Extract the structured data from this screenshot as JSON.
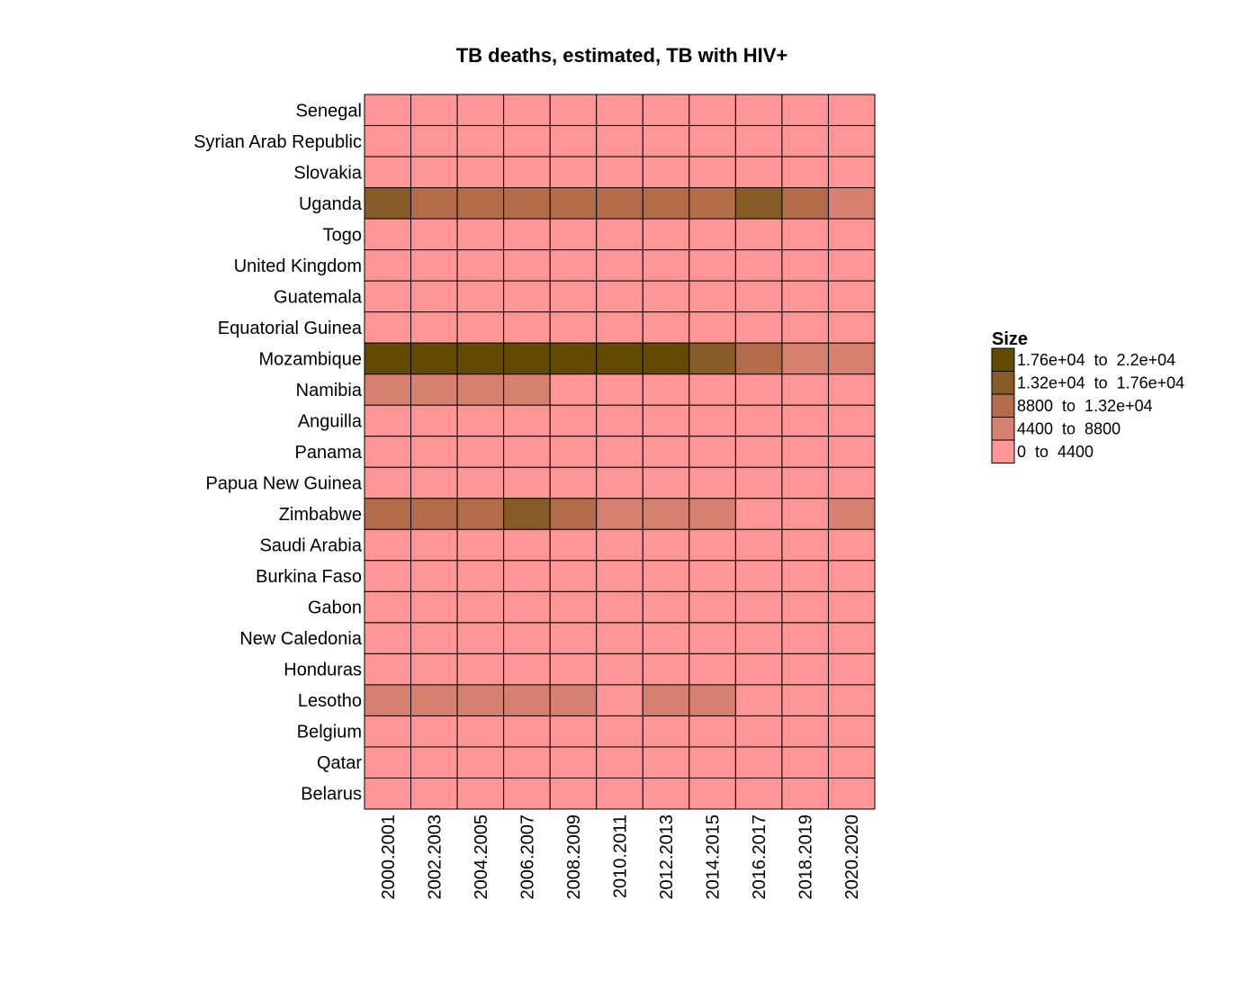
{
  "chart_data": {
    "type": "heatmap",
    "title": "TB deaths, estimated, TB with HIV+",
    "x": [
      "2000.2001",
      "2002.2003",
      "2004.2005",
      "2006.2007",
      "2008.2009",
      "2010.2011",
      "2012.2013",
      "2014.2015",
      "2016.2017",
      "2018.2019",
      "2020.2020"
    ],
    "y": [
      "Senegal",
      "Syrian Arab Republic",
      "Slovakia",
      "Uganda",
      "Togo",
      "United Kingdom",
      "Guatemala",
      "Equatorial Guinea",
      "Mozambique",
      "Namibia",
      "Anguilla",
      "Panama",
      "Papua New Guinea",
      "Zimbabwe",
      "Saudi Arabia",
      "Burkina Faso",
      "Gabon",
      "New Caledonia",
      "Honduras",
      "Lesotho",
      "Belgium",
      "Qatar",
      "Belarus"
    ],
    "bins": [
      0,
      0,
      0,
      [
        4,
        3,
        3,
        3,
        3,
        3,
        3,
        3,
        4,
        3,
        2
      ],
      0,
      0,
      0,
      0,
      [
        5,
        5,
        5,
        5,
        5,
        5,
        5,
        4,
        3,
        2,
        2
      ],
      [
        2,
        2,
        2,
        2,
        1,
        1,
        1,
        1,
        1,
        1,
        1
      ],
      0,
      0,
      0,
      [
        3,
        3,
        3,
        4,
        3,
        2,
        2,
        2,
        1,
        1,
        2
      ],
      0,
      0,
      0,
      0,
      0,
      [
        2,
        2,
        2,
        2,
        2,
        1,
        2,
        2,
        1,
        1,
        1
      ],
      0,
      0,
      0
    ],
    "legend": {
      "title": "Size",
      "position": "right",
      "entries": [
        {
          "label": "1.76e+04  to  2.2e+04",
          "color": "#614B00",
          "bin": 5
        },
        {
          "label": "1.32e+04  to  1.76e+04",
          "color": "#865B25",
          "bin": 4
        },
        {
          "label": "8800  to  1.32e+04",
          "color": "#B26C4A",
          "bin": 3
        },
        {
          "label": "4400  to  8800",
          "color": "#D68070",
          "bin": 2
        },
        {
          "label": "0  to  4400",
          "color": "#FF9595",
          "bin": 1
        }
      ]
    },
    "grid": false
  }
}
